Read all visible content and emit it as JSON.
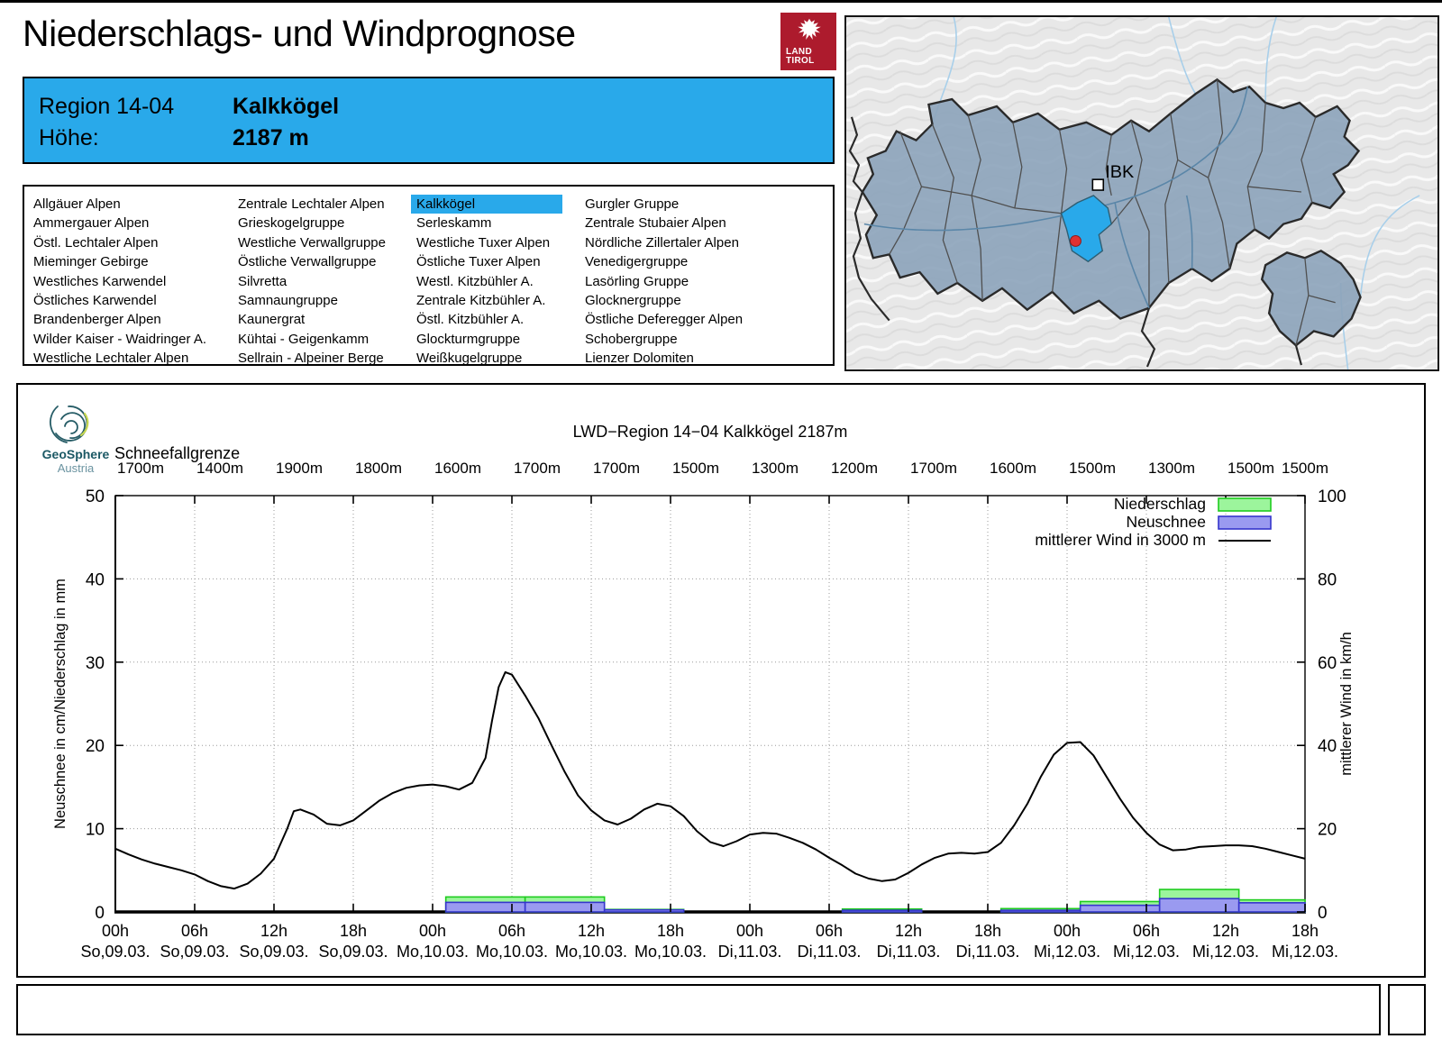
{
  "page": {
    "title": "Niederschlags- und Windprognose"
  },
  "brand": {
    "line1": "LAND",
    "line2": "TIROL"
  },
  "colors": {
    "accent_blue": "#29A9EA",
    "logo_red": "#AD1B2D",
    "map_region_fill": "#8CA3BA",
    "bar_green_fill": "#9CF59C",
    "bar_green_border": "#1ECC1E",
    "bar_blue_fill": "#9A9AF0",
    "bar_blue_border": "#3535CC",
    "wind_line": "#000000"
  },
  "info_box": {
    "region_label": "Region 14-04",
    "region_name": "Kalkkögel",
    "altitude_label": "Höhe:",
    "altitude_value": "2187 m"
  },
  "region_list": {
    "selected": "Kalkkögel",
    "columns": [
      [
        "Allgäuer Alpen",
        "Ammergauer Alpen",
        "Östl. Lechtaler Alpen",
        "Mieminger Gebirge",
        "Westliches Karwendel",
        "Östliches Karwendel",
        "Brandenberger Alpen",
        "Wilder Kaiser - Waidringer A.",
        "Westliche Lechtaler Alpen"
      ],
      [
        "Zentrale Lechtaler Alpen",
        "Grieskogelgruppe",
        "Westliche Verwallgruppe",
        "Östliche Verwallgruppe",
        "Silvretta",
        "Samnaungruppe",
        "Kaunergrat",
        "Kühtai - Geigenkamm",
        "Sellrain - Alpeiner Berge"
      ],
      [
        "Kalkkögel",
        "Serleskamm",
        "Westliche Tuxer Alpen",
        "Östliche Tuxer Alpen",
        "Westl. Kitzbühler A.",
        "Zentrale Kitzbühler A.",
        "Östl. Kitzbühler A.",
        "Glockturmgruppe",
        "Weißkugelgruppe"
      ],
      [
        "Gurgler Gruppe",
        "Zentrale Stubaier Alpen",
        "Nördliche Zillertaler Alpen",
        "Venedigergruppe",
        "Lasörling Gruppe",
        "Glocknergruppe",
        "Östliche Deferegger Alpen",
        "Schobergruppe",
        "Lienzer Dolomiten"
      ]
    ]
  },
  "map": {
    "ibk_label": "IBK"
  },
  "geosphere": {
    "name": "GeoSphere",
    "country": "Austria"
  },
  "chart_data": {
    "type": "line+bar",
    "title": "LWD−Region 14−04 Kalkkögel 2187m",
    "snowline_label": "Schneefallgrenze",
    "snowline_m": [
      "1700m",
      "1400m",
      "1900m",
      "1800m",
      "1600m",
      "1700m",
      "1700m",
      "1500m",
      "1300m",
      "1200m",
      "1700m",
      "1600m",
      "1500m",
      "1300m",
      "1500m",
      "1500m"
    ],
    "ylabel_left": "Neuschnee in cm/Niederschlag in mm",
    "ylabel_right": "mittlerer Wind in km/h",
    "ylim_left": [
      0,
      50
    ],
    "ylim_right": [
      0,
      100
    ],
    "yticks_left": [
      0,
      10,
      20,
      30,
      40,
      50
    ],
    "yticks_right": [
      0,
      20,
      40,
      60,
      80,
      100
    ],
    "hours_range": [
      0,
      90
    ],
    "x_ticks": [
      {
        "time": "00h",
        "date": "So,09.03."
      },
      {
        "time": "06h",
        "date": "So,09.03."
      },
      {
        "time": "12h",
        "date": "So,09.03."
      },
      {
        "time": "18h",
        "date": "So,09.03."
      },
      {
        "time": "00h",
        "date": "Mo,10.03."
      },
      {
        "time": "06h",
        "date": "Mo,10.03."
      },
      {
        "time": "12h",
        "date": "Mo,10.03."
      },
      {
        "time": "18h",
        "date": "Mo,10.03."
      },
      {
        "time": "00h",
        "date": "Di,11.03."
      },
      {
        "time": "06h",
        "date": "Di,11.03."
      },
      {
        "time": "12h",
        "date": "Di,11.03."
      },
      {
        "time": "18h",
        "date": "Di,11.03."
      },
      {
        "time": "00h",
        "date": "Mi,12.03."
      },
      {
        "time": "06h",
        "date": "Mi,12.03."
      },
      {
        "time": "12h",
        "date": "Mi,12.03."
      },
      {
        "time": "18h",
        "date": "Mi,12.03."
      }
    ],
    "series": [
      {
        "name": "Niederschlag",
        "type": "bar",
        "unit": "mm",
        "fill": "#9CF59C",
        "border": "#1ECC1E",
        "intervals": [
          [
            25,
            31,
            1.8
          ],
          [
            31,
            37,
            1.8
          ],
          [
            37,
            43,
            0.3
          ],
          [
            55,
            61,
            0.35
          ],
          [
            67,
            73,
            0.4
          ],
          [
            73,
            79,
            1.25
          ],
          [
            79,
            85,
            2.7
          ],
          [
            85,
            91,
            1.45
          ]
        ]
      },
      {
        "name": "Neuschnee",
        "type": "bar",
        "unit": "cm",
        "fill": "#9A9AF0",
        "border": "#3535CC",
        "intervals": [
          [
            25,
            31,
            1.15
          ],
          [
            31,
            37,
            1.15
          ],
          [
            37,
            43,
            0.25
          ],
          [
            55,
            61,
            0.2
          ],
          [
            67,
            73,
            0.2
          ],
          [
            73,
            79,
            0.8
          ],
          [
            79,
            85,
            1.6
          ],
          [
            85,
            91,
            1.1
          ]
        ]
      },
      {
        "name": "mittlerer Wind in 3000 m",
        "type": "line",
        "unit": "km/h",
        "color": "#000000",
        "points": [
          [
            0,
            15.2
          ],
          [
            1,
            13.8
          ],
          [
            2,
            12.6
          ],
          [
            3,
            11.6
          ],
          [
            4,
            10.8
          ],
          [
            5,
            10.0
          ],
          [
            6,
            9.0
          ],
          [
            7,
            7.4
          ],
          [
            8,
            6.2
          ],
          [
            9,
            5.6
          ],
          [
            10,
            6.8
          ],
          [
            11,
            9.2
          ],
          [
            12,
            12.8
          ],
          [
            13,
            20.0
          ],
          [
            13.5,
            24.2
          ],
          [
            14,
            24.6
          ],
          [
            15,
            23.4
          ],
          [
            16,
            21.2
          ],
          [
            17,
            20.8
          ],
          [
            18,
            22.0
          ],
          [
            19,
            24.4
          ],
          [
            20,
            26.8
          ],
          [
            21,
            28.6
          ],
          [
            22,
            29.8
          ],
          [
            23,
            30.4
          ],
          [
            24,
            30.6
          ],
          [
            25,
            30.2
          ],
          [
            26,
            29.4
          ],
          [
            27,
            31.0
          ],
          [
            28,
            37.0
          ],
          [
            28.5,
            46.0
          ],
          [
            29,
            54.0
          ],
          [
            29.5,
            57.6
          ],
          [
            30,
            57.0
          ],
          [
            31,
            52.0
          ],
          [
            32,
            46.6
          ],
          [
            33,
            40.0
          ],
          [
            34,
            33.6
          ],
          [
            35,
            28.0
          ],
          [
            36,
            24.4
          ],
          [
            37,
            22.0
          ],
          [
            38,
            21.0
          ],
          [
            39,
            22.4
          ],
          [
            40,
            24.6
          ],
          [
            41,
            26.0
          ],
          [
            42,
            25.4
          ],
          [
            43,
            23.0
          ],
          [
            44,
            19.4
          ],
          [
            45,
            16.8
          ],
          [
            46,
            15.8
          ],
          [
            47,
            17.0
          ],
          [
            48,
            18.6
          ],
          [
            49,
            19.0
          ],
          [
            50,
            18.8
          ],
          [
            51,
            17.8
          ],
          [
            52,
            16.6
          ],
          [
            53,
            15.0
          ],
          [
            54,
            13.0
          ],
          [
            55,
            11.2
          ],
          [
            56,
            9.2
          ],
          [
            57,
            8.0
          ],
          [
            58,
            7.4
          ],
          [
            59,
            7.8
          ],
          [
            60,
            9.4
          ],
          [
            61,
            11.4
          ],
          [
            62,
            13.0
          ],
          [
            63,
            14.0
          ],
          [
            64,
            14.2
          ],
          [
            65,
            14.0
          ],
          [
            66,
            14.4
          ],
          [
            67,
            16.6
          ],
          [
            68,
            20.8
          ],
          [
            69,
            26.0
          ],
          [
            70,
            32.4
          ],
          [
            71,
            37.8
          ],
          [
            72,
            40.6
          ],
          [
            73,
            40.8
          ],
          [
            74,
            37.6
          ],
          [
            75,
            32.4
          ],
          [
            76,
            27.2
          ],
          [
            77,
            22.6
          ],
          [
            78,
            19.0
          ],
          [
            79,
            16.2
          ],
          [
            80,
            14.8
          ],
          [
            81,
            15.0
          ],
          [
            82,
            15.6
          ],
          [
            83,
            15.8
          ],
          [
            84,
            16.0
          ],
          [
            85,
            16.0
          ],
          [
            86,
            15.8
          ],
          [
            87,
            15.2
          ],
          [
            88,
            14.4
          ],
          [
            89,
            13.6
          ],
          [
            90,
            12.8
          ]
        ]
      }
    ],
    "legend_position": "top-right",
    "grid": "dotted"
  }
}
